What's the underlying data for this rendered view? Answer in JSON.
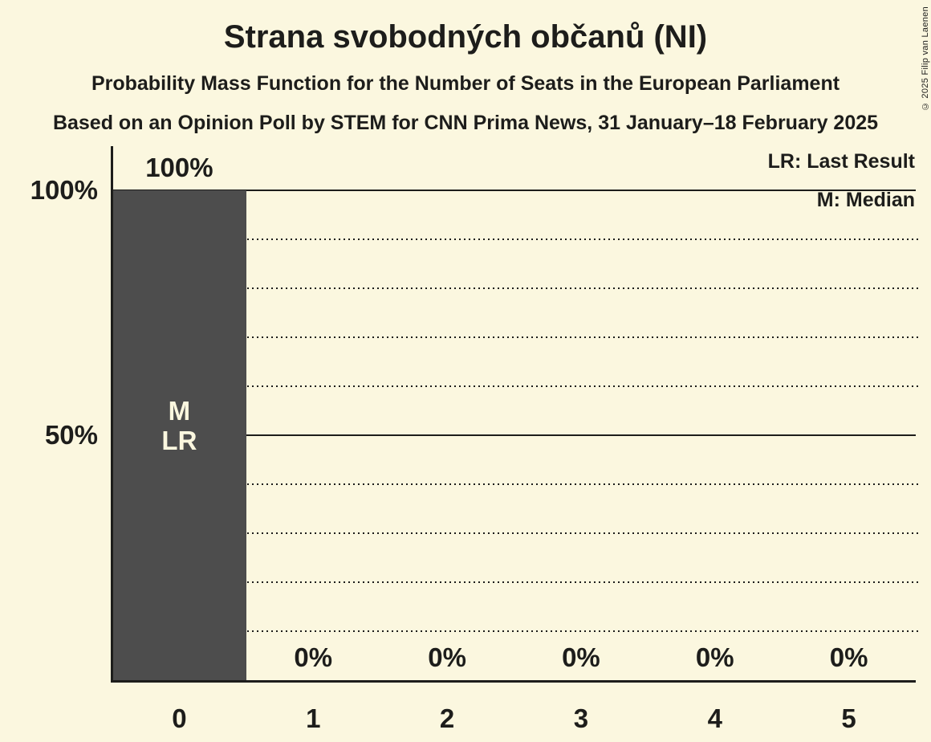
{
  "page": {
    "background": "#fbf7df",
    "text_color": "#1d1d1b"
  },
  "header": {
    "title": "Strana svobodných občanů (NI)",
    "subtitle": "Probability Mass Function for the Number of Seats in the European Parliament",
    "source": "Based on an Opinion Poll by STEM for CNN Prima News, 31 January–18 February 2025"
  },
  "legend": {
    "lr": "LR: Last Result",
    "m": "M: Median"
  },
  "copyright": "© 2025 Filip van Laenen",
  "chart_data": {
    "type": "bar",
    "title": "Strana svobodných občanů (NI)",
    "subtitle": "Probability Mass Function for the Number of Seats in the European Parliament",
    "source_line": "Based on an Opinion Poll by STEM for CNN Prima News, 31 January–18 February 2025",
    "categories": [
      "0",
      "1",
      "2",
      "3",
      "4",
      "5"
    ],
    "values": [
      100,
      0,
      0,
      0,
      0,
      0
    ],
    "value_labels": [
      "100%",
      "0%",
      "0%",
      "0%",
      "0%",
      "0%"
    ],
    "xlabel": "",
    "ylabel": "",
    "ylim": [
      0,
      100
    ],
    "yticks": [
      {
        "value": 100,
        "label": "100%"
      },
      {
        "value": 50,
        "label": "50%"
      }
    ],
    "gridlines": {
      "solid": [
        100,
        50
      ],
      "dotted": [
        90,
        80,
        70,
        60,
        40,
        30,
        20,
        10
      ]
    },
    "legend_entries": [
      "LR: Last Result",
      "M: Median"
    ],
    "legend_position": "top-right",
    "grid": true,
    "bar_color": "#4d4d4d",
    "background_color": "#fbf7df",
    "annotation_text_color": "#fbf7df",
    "median_seat": 0,
    "last_result_seat": 0,
    "bar_annotations": {
      "seat_index": 0,
      "lines": [
        "M",
        "LR"
      ]
    }
  }
}
